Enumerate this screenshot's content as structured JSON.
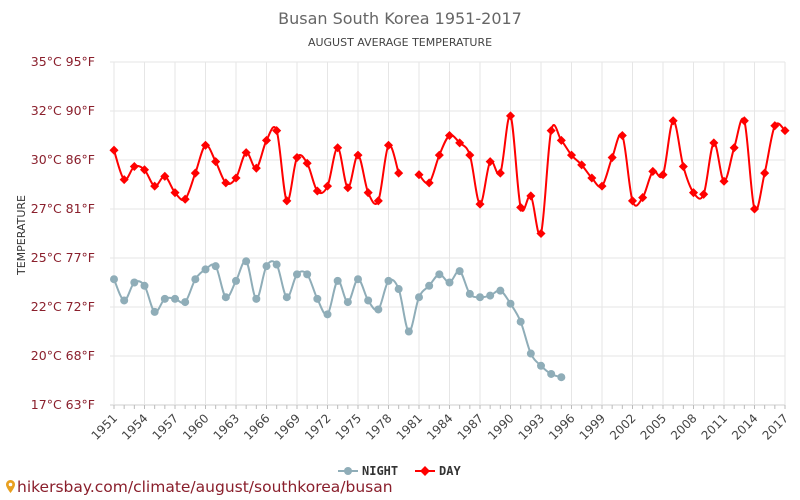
{
  "chart_data": {
    "type": "line",
    "title": "Busan South Korea 1951-2017",
    "subtitle": "AUGUST AVERAGE TEMPERATURE",
    "ylabel": "TEMPERATURE",
    "xlabel": "",
    "ylim": [
      17,
      35
    ],
    "yticks": [
      {
        "value": 17,
        "label": "17°C 63°F"
      },
      {
        "value": 20,
        "label": "20°C 68°F"
      },
      {
        "value": 22,
        "label": "22°C 72°F"
      },
      {
        "value": 25,
        "label": "25°C 77°F"
      },
      {
        "value": 27,
        "label": "27°C 81°F"
      },
      {
        "value": 30,
        "label": "30°C 86°F"
      },
      {
        "value": 32,
        "label": "32°C 90°F"
      },
      {
        "value": 35,
        "label": "35°C 95°F"
      }
    ],
    "x": [
      1951,
      1952,
      1953,
      1954,
      1955,
      1956,
      1957,
      1958,
      1959,
      1960,
      1961,
      1962,
      1963,
      1964,
      1965,
      1966,
      1967,
      1968,
      1969,
      1970,
      1971,
      1972,
      1973,
      1974,
      1975,
      1976,
      1977,
      1978,
      1979,
      1980,
      1981,
      1982,
      1983,
      1984,
      1985,
      1986,
      1987,
      1988,
      1989,
      1990,
      1991,
      1992,
      1993,
      1994,
      1995,
      1996,
      1997,
      1998,
      1999,
      2000,
      2001,
      2002,
      2003,
      2004,
      2005,
      2006,
      2007,
      2008,
      2009,
      2010,
      2011,
      2012,
      2013,
      2014,
      2015,
      2016,
      2017
    ],
    "xticks": [
      1951,
      1954,
      1957,
      1960,
      1963,
      1966,
      1969,
      1972,
      1975,
      1978,
      1981,
      1984,
      1987,
      1990,
      1993,
      1996,
      1999,
      2002,
      2005,
      2008,
      2011,
      2014,
      2017
    ],
    "grid": true,
    "legend_position": "bottom",
    "series": [
      {
        "name": "NIGHT",
        "color": "#8fadb8",
        "values": [
          23.7,
          22.4,
          23.5,
          23.3,
          21.8,
          22.5,
          22.5,
          22.3,
          23.7,
          24.3,
          24.5,
          22.6,
          23.6,
          24.8,
          22.5,
          24.5,
          24.6,
          22.6,
          24.0,
          24.0,
          22.5,
          21.7,
          23.6,
          22.3,
          23.7,
          22.4,
          21.9,
          23.6,
          23.1,
          21.0,
          22.6,
          23.3,
          24.0,
          23.5,
          24.2,
          22.8,
          22.6,
          22.7,
          23.0,
          22.2,
          21.4,
          20.1,
          19.4,
          18.9,
          18.7,
          null,
          null,
          null,
          null,
          null,
          null,
          null,
          null,
          null,
          null,
          null,
          null,
          null,
          null,
          null,
          null,
          null,
          null,
          null,
          null,
          null,
          null
        ]
      },
      {
        "name": "DAY",
        "color": "#ff0000",
        "values": [
          30.4,
          28.8,
          29.6,
          29.4,
          28.4,
          29.0,
          28.0,
          27.6,
          29.2,
          30.6,
          29.9,
          28.6,
          28.9,
          30.3,
          29.5,
          30.8,
          31.2,
          27.5,
          30.1,
          29.8,
          28.1,
          28.4,
          30.5,
          28.3,
          30.2,
          28.0,
          27.5,
          30.6,
          29.2,
          null,
          29.1,
          28.6,
          30.2,
          31.0,
          30.7,
          30.2,
          27.3,
          29.9,
          29.2,
          31.8,
          27.1,
          27.8,
          26.0,
          31.2,
          30.8,
          30.2,
          29.7,
          28.9,
          28.4,
          30.1,
          31.0,
          27.5,
          27.7,
          29.3,
          29.1,
          31.6,
          29.6,
          28.0,
          27.9,
          30.7,
          28.7,
          30.5,
          31.6,
          27.0,
          29.2,
          31.4,
          31.2
        ]
      }
    ]
  },
  "source_text": "hikersbay.com/climate/august/southkorea/busan",
  "colors": {
    "tick_text": "#8a1f2c",
    "grid": "#e6e6e6",
    "background": "#ffffff"
  }
}
